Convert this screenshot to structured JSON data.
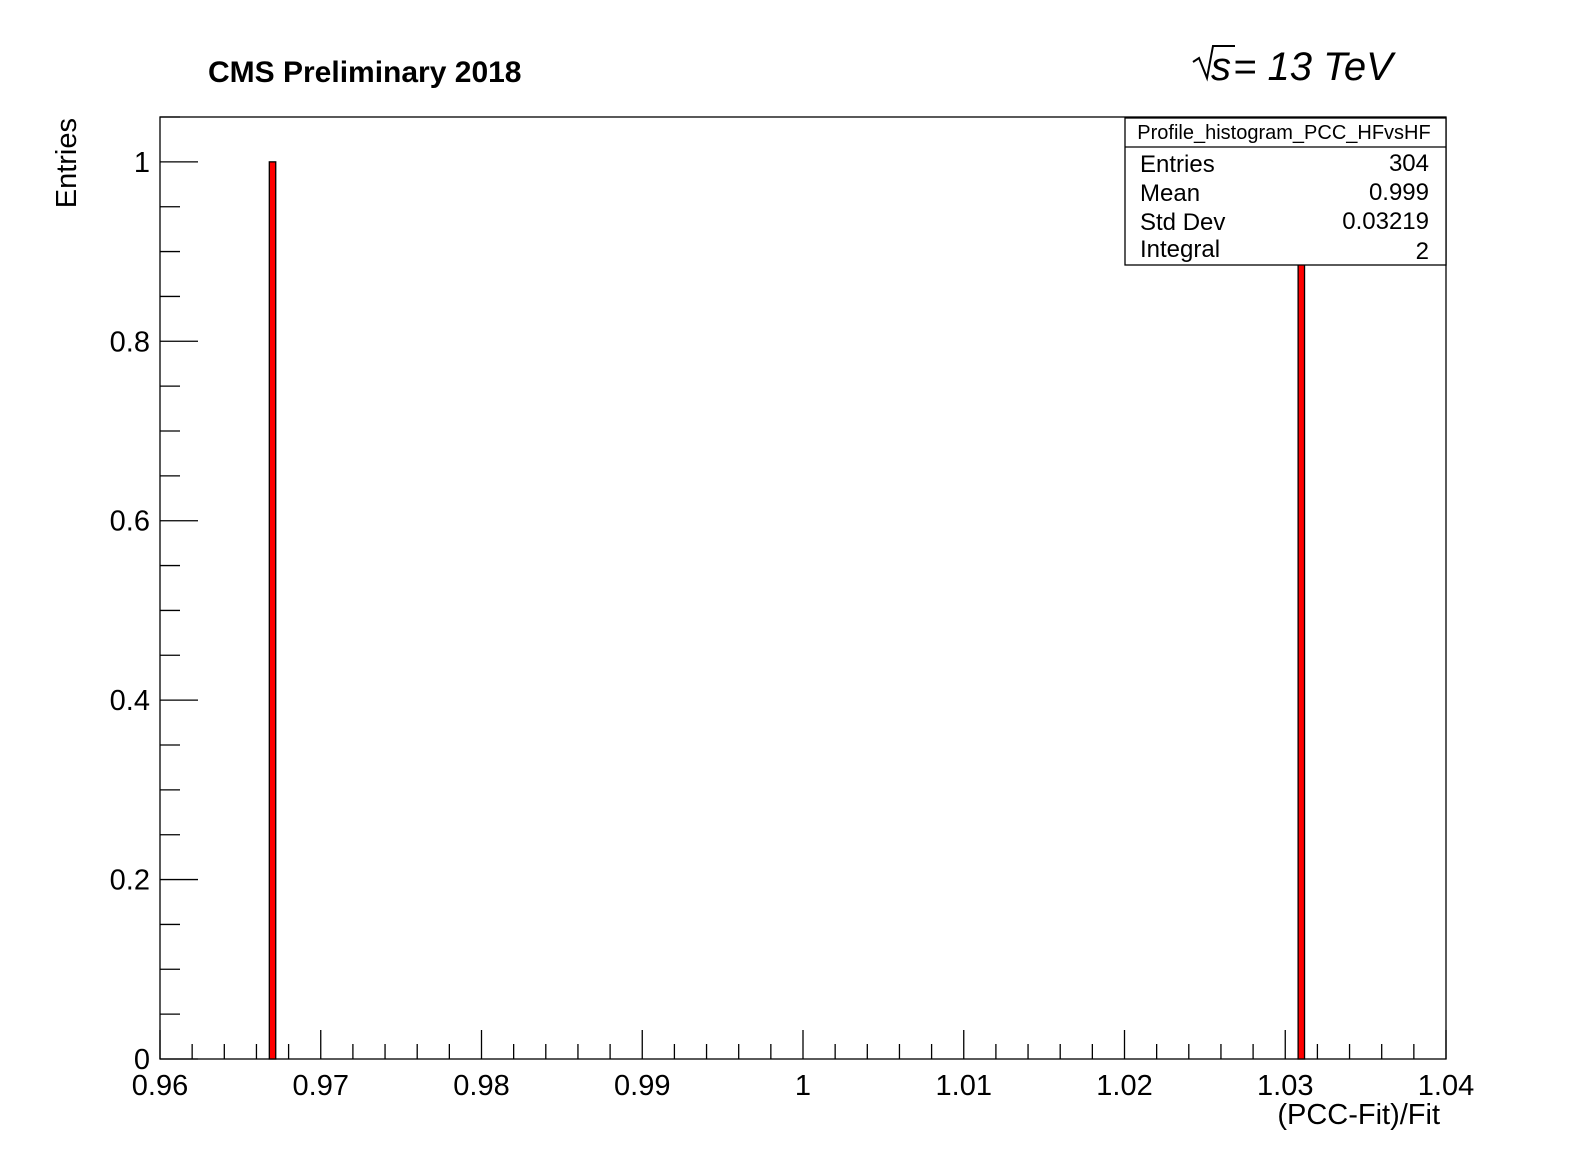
{
  "header": {
    "cms_label": "CMS Preliminary 2018",
    "energy_value": "s",
    "energy_rest": " = 13 TeV"
  },
  "stats_box": {
    "title": "Profile_histogram_PCC_HFvsHF",
    "rows": [
      {
        "label": "Entries",
        "value": "304"
      },
      {
        "label": "Mean",
        "value": "0.999"
      },
      {
        "label": "Std Dev",
        "value": "0.03219"
      },
      {
        "label": "Integral",
        "value": "2"
      }
    ]
  },
  "colors": {
    "bar_fill": "#ff0000",
    "bar_stroke": "#000000",
    "axis": "#000000"
  },
  "chart_data": {
    "type": "bar",
    "xlabel": "(PCC-Fit)/Fit",
    "ylabel": "Entries",
    "xlim": [
      0.96,
      1.04
    ],
    "ylim": [
      0,
      1.05
    ],
    "x_ticks": [
      "0.96",
      "0.97",
      "0.98",
      "0.99",
      "1",
      "1.01",
      "1.02",
      "1.03",
      "1.04"
    ],
    "y_ticks": [
      "0",
      "0.2",
      "0.4",
      "0.6",
      "0.8",
      "1"
    ],
    "bin_width": 0.0004,
    "bins": [
      {
        "x": 0.967,
        "value": 1
      },
      {
        "x": 1.031,
        "value": 1
      }
    ],
    "grid": false,
    "legend": "top-right"
  }
}
